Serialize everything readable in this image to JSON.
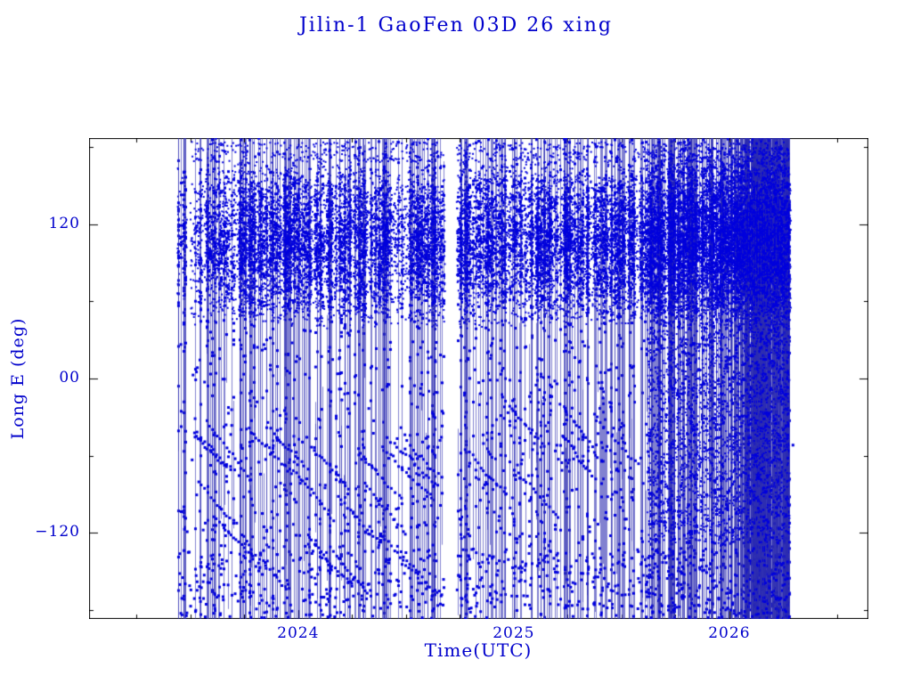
{
  "page": {
    "background": "#ffffff"
  },
  "chart_data": {
    "type": "scatter",
    "title": "Jilin-1 GaoFen 03D 26 xing",
    "xlabel": "Time(UTC)",
    "ylabel": "Long E (deg)",
    "xlim": [
      2023.03,
      2026.645
    ],
    "ylim": [
      -187,
      187
    ],
    "x_ticks": [
      {
        "value": 2024,
        "label": "2024"
      },
      {
        "value": 2025,
        "label": "2025"
      },
      {
        "value": 2026,
        "label": "2026"
      }
    ],
    "y_ticks": [
      {
        "value": 120,
        "label": "120"
      },
      {
        "value": 0,
        "label": "00"
      },
      {
        "value": -120,
        "label": "−120"
      }
    ],
    "x_minor_step": 0.25,
    "y_minor_step": 60,
    "grid": false,
    "legend": "none",
    "series_description": "Sub-satellite longitude (deg E) vs time for Jilin-1 GaoFen 03D constellation (26 satellites). Longitude wraps at ±180° producing near-vertical trace lines; dense coverage band between ~40°E and ~170°E from 2023.5 through 2026.2; visible data gap near 2024.7; very dense cluster 2025.6–2026.3 extending down to ~−120°.",
    "colors": {
      "text": "#0000cc",
      "marker": "#0000dd",
      "line": "#2b2bb0",
      "frame": "#000000"
    },
    "render_spec": {
      "seed": 1337,
      "gap": [
        2024.675,
        2024.735
      ],
      "band": [
        38,
        172
      ],
      "regions": [
        {
          "t": [
            2023.44,
            2023.62
          ],
          "lines": 26,
          "full_frac": 0.85,
          "line_markers": 10,
          "band_markers": 6
        },
        {
          "t": [
            2023.62,
            2024.675
          ],
          "lines": 170,
          "full_frac": 0.75,
          "line_markers": 11,
          "band_markers": 24
        },
        {
          "t": [
            2024.735,
            2025.62
          ],
          "lines": 150,
          "full_frac": 0.75,
          "line_markers": 11,
          "band_markers": 24
        },
        {
          "t": [
            2025.62,
            2026.07
          ],
          "lines": 170,
          "full_frac": 0.8,
          "line_markers": 13,
          "band_markers": 26
        },
        {
          "t": [
            2026.07,
            2026.28
          ],
          "lines": 300,
          "full_frac": 0.9,
          "line_markers": 12,
          "band_markers": 10
        }
      ],
      "band_fill": {
        "t": [
          2023.5,
          2026.28
        ],
        "count": 5200
      },
      "right_block": {
        "t": [
          2025.62,
          2026.28
        ],
        "y": [
          -128,
          180
        ],
        "count": 3800
      },
      "lower_chains": {
        "t": [
          2023.45,
          2025.6
        ],
        "chains": 26,
        "points": 14,
        "y_start": [
          -140,
          -10
        ],
        "dt": 0.013,
        "dy": -2.5
      },
      "lower_scatter": {
        "t": [
          2023.45,
          2026.3
        ],
        "y": [
          -180,
          30
        ],
        "count": 420
      },
      "bottom_scatter": {
        "t": [
          2023.45,
          2026.28
        ],
        "y": [
          -186,
          -132
        ],
        "count": 420
      },
      "top_scatter": {
        "t": [
          2023.5,
          2026.28
        ],
        "y": [
          168,
          184
        ],
        "count": 700
      }
    }
  }
}
